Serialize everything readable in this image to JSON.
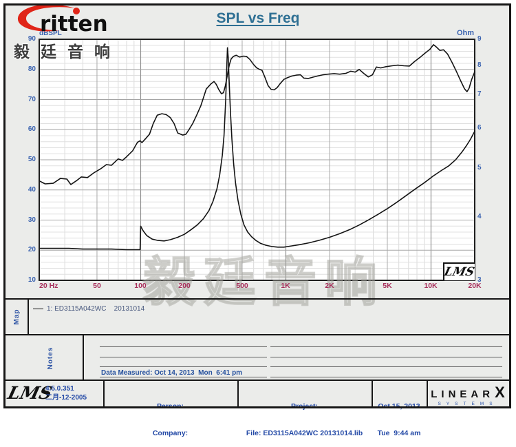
{
  "header": {
    "logo_text": "ritten",
    "company_cn": "毅廷音响",
    "title": "SPL vs Freq"
  },
  "chart": {
    "left_axis_label": "dBSPL",
    "right_axis_label": "Ohm",
    "corner_logo": "LMS",
    "watermark": "毅廷音响"
  },
  "colors": {
    "axis_label_blue": "#3b63b0",
    "freq_label_maroon": "#a8305c",
    "title_teal": "#2e6f93",
    "footer_text_blue": "#2349a6",
    "curve_black": "#141414",
    "logo_red": "#e02518"
  },
  "chart_data": {
    "type": "line",
    "title": "SPL vs Freq",
    "grid": true,
    "x_axis": {
      "label": "Hz",
      "scale": "log",
      "min": 20,
      "max": 20000,
      "ticks": [
        {
          "f": 20,
          "label": "20 Hz"
        },
        {
          "f": 50,
          "label": "50"
        },
        {
          "f": 100,
          "label": "100"
        },
        {
          "f": 200,
          "label": "200"
        },
        {
          "f": 500,
          "label": "500"
        },
        {
          "f": 1000,
          "label": "1K"
        },
        {
          "f": 2000,
          "label": "2K"
        },
        {
          "f": 5000,
          "label": "5K"
        },
        {
          "f": 10000,
          "label": "10K"
        },
        {
          "f": 20000,
          "label": "20K"
        }
      ]
    },
    "y_left": {
      "label": "dBSPL",
      "min": 10,
      "max": 90,
      "minor_step": 2,
      "ticks": [
        90,
        80,
        70,
        60,
        50,
        40,
        30,
        20,
        10
      ]
    },
    "y_right": {
      "label": "Ohm",
      "min": 3,
      "max": 9,
      "scale": "log",
      "ticks": [
        9,
        8,
        7,
        6,
        5,
        4,
        3
      ]
    },
    "series": [
      {
        "name": "1: ED3115A042WC 20131014",
        "axis": "left",
        "unit": "dBSPL",
        "points": [
          [
            20,
            43
          ],
          [
            22,
            42
          ],
          [
            25,
            42.2
          ],
          [
            28,
            43.8
          ],
          [
            31,
            43.6
          ],
          [
            33,
            41.8
          ],
          [
            36,
            43
          ],
          [
            39,
            44.3
          ],
          [
            43,
            44.1
          ],
          [
            48,
            45.8
          ],
          [
            53,
            47
          ],
          [
            58,
            48.4
          ],
          [
            63,
            48.2
          ],
          [
            70,
            50.3
          ],
          [
            75,
            49.8
          ],
          [
            80,
            51
          ],
          [
            88,
            53
          ],
          [
            95,
            55.8
          ],
          [
            99,
            56.3
          ],
          [
            102,
            55.7
          ],
          [
            108,
            57
          ],
          [
            115,
            58.5
          ],
          [
            122,
            62
          ],
          [
            130,
            64.8
          ],
          [
            140,
            65.3
          ],
          [
            150,
            65
          ],
          [
            160,
            64
          ],
          [
            170,
            62
          ],
          [
            180,
            58.9
          ],
          [
            195,
            58.2
          ],
          [
            205,
            58.5
          ],
          [
            215,
            60
          ],
          [
            228,
            62
          ],
          [
            243,
            64.8
          ],
          [
            260,
            68
          ],
          [
            283,
            73.5
          ],
          [
            305,
            75.2
          ],
          [
            320,
            76
          ],
          [
            332,
            75
          ],
          [
            345,
            73.3
          ],
          [
            360,
            71.9
          ],
          [
            372,
            72.3
          ],
          [
            383,
            74.5
          ],
          [
            395,
            78
          ],
          [
            408,
            81.5
          ],
          [
            420,
            83.5
          ],
          [
            435,
            84.3
          ],
          [
            455,
            84.7
          ],
          [
            480,
            84.1
          ],
          [
            510,
            84.4
          ],
          [
            535,
            84.3
          ],
          [
            565,
            83.3
          ],
          [
            600,
            81.6
          ],
          [
            630,
            80.5
          ],
          [
            660,
            80
          ],
          [
            685,
            79.7
          ],
          [
            715,
            77.6
          ],
          [
            755,
            74.6
          ],
          [
            790,
            73.4
          ],
          [
            830,
            73.2
          ],
          [
            870,
            73.9
          ],
          [
            915,
            75.3
          ],
          [
            970,
            76.7
          ],
          [
            1030,
            77.3
          ],
          [
            1100,
            77.8
          ],
          [
            1180,
            78.1
          ],
          [
            1260,
            78.2
          ],
          [
            1330,
            77.1
          ],
          [
            1430,
            77
          ],
          [
            1530,
            77.4
          ],
          [
            1650,
            77.8
          ],
          [
            1800,
            78.2
          ],
          [
            1950,
            78.4
          ],
          [
            2150,
            78.6
          ],
          [
            2350,
            78.4
          ],
          [
            2600,
            78.7
          ],
          [
            2800,
            79.4
          ],
          [
            3000,
            79.1
          ],
          [
            3200,
            80
          ],
          [
            3450,
            78.6
          ],
          [
            3700,
            77.5
          ],
          [
            3950,
            78.2
          ],
          [
            4200,
            80.8
          ],
          [
            4500,
            80.5
          ],
          [
            4900,
            80.9
          ],
          [
            5400,
            81.2
          ],
          [
            5900,
            81.4
          ],
          [
            6500,
            81.2
          ],
          [
            7100,
            81.1
          ],
          [
            7700,
            82.6
          ],
          [
            8400,
            84
          ],
          [
            9100,
            85.4
          ],
          [
            9800,
            86.6
          ],
          [
            10400,
            88.2
          ],
          [
            10900,
            87.4
          ],
          [
            11500,
            86.3
          ],
          [
            12200,
            86.5
          ],
          [
            13000,
            85.1
          ],
          [
            14000,
            82.2
          ],
          [
            15000,
            79.2
          ],
          [
            16000,
            76.2
          ],
          [
            17000,
            73.6
          ],
          [
            17700,
            72.6
          ],
          [
            18300,
            73.8
          ],
          [
            19000,
            76.5
          ],
          [
            20000,
            79.2
          ]
        ]
      },
      {
        "name": "impedance",
        "axis": "right",
        "unit": "Ohm",
        "points": [
          [
            20,
            3.47
          ],
          [
            25,
            3.47
          ],
          [
            32,
            3.47
          ],
          [
            40,
            3.46
          ],
          [
            50,
            3.46
          ],
          [
            63,
            3.46
          ],
          [
            80,
            3.45
          ],
          [
            99,
            3.45
          ],
          [
            100,
            3.84
          ],
          [
            104,
            3.76
          ],
          [
            110,
            3.68
          ],
          [
            120,
            3.62
          ],
          [
            130,
            3.6
          ],
          [
            145,
            3.59
          ],
          [
            160,
            3.61
          ],
          [
            180,
            3.65
          ],
          [
            200,
            3.7
          ],
          [
            220,
            3.77
          ],
          [
            245,
            3.86
          ],
          [
            270,
            3.97
          ],
          [
            295,
            4.12
          ],
          [
            315,
            4.3
          ],
          [
            335,
            4.55
          ],
          [
            350,
            4.85
          ],
          [
            365,
            5.3
          ],
          [
            375,
            5.8
          ],
          [
            385,
            6.8
          ],
          [
            392,
            8
          ],
          [
            396,
            8.66
          ],
          [
            401,
            8.3
          ],
          [
            408,
            7.3
          ],
          [
            416,
            6.4
          ],
          [
            425,
            5.7
          ],
          [
            437,
            5.1
          ],
          [
            450,
            4.68
          ],
          [
            468,
            4.32
          ],
          [
            490,
            4.05
          ],
          [
            515,
            3.86
          ],
          [
            545,
            3.74
          ],
          [
            580,
            3.66
          ],
          [
            620,
            3.6
          ],
          [
            670,
            3.55
          ],
          [
            730,
            3.52
          ],
          [
            800,
            3.5
          ],
          [
            880,
            3.49
          ],
          [
            970,
            3.49
          ],
          [
            1100,
            3.51
          ],
          [
            1250,
            3.53
          ],
          [
            1450,
            3.56
          ],
          [
            1700,
            3.6
          ],
          [
            2000,
            3.65
          ],
          [
            2350,
            3.71
          ],
          [
            2750,
            3.78
          ],
          [
            3200,
            3.86
          ],
          [
            3700,
            3.95
          ],
          [
            4300,
            4.05
          ],
          [
            5000,
            4.16
          ],
          [
            5800,
            4.28
          ],
          [
            6700,
            4.41
          ],
          [
            7800,
            4.55
          ],
          [
            9000,
            4.68
          ],
          [
            10300,
            4.82
          ],
          [
            11800,
            4.95
          ],
          [
            13200,
            5.05
          ],
          [
            14800,
            5.2
          ],
          [
            16300,
            5.38
          ],
          [
            17600,
            5.55
          ],
          [
            18800,
            5.72
          ],
          [
            20000,
            5.92
          ]
        ]
      }
    ]
  },
  "map": {
    "label": "Map",
    "legend": "1: ED3115A042WC    20131014"
  },
  "notes": {
    "label": "Notes",
    "data_measured": "Data Measured: Oct 14, 2013  Mon  6:41 pm"
  },
  "footer": {
    "lms_logo": "LMS",
    "version": "4.5.0.351",
    "version_date": "二月-12-2005",
    "person_label": "Person:",
    "company_label": "Company:",
    "project_label": "Project:",
    "file": "File: ED3115A042WC 20131014.lib",
    "date": "Oct 15, 2013",
    "time": "Tue  9:44 am",
    "brand_linear": "LINEAR",
    "brand_x": "X",
    "brand_systems": "SYSTEMS"
  }
}
